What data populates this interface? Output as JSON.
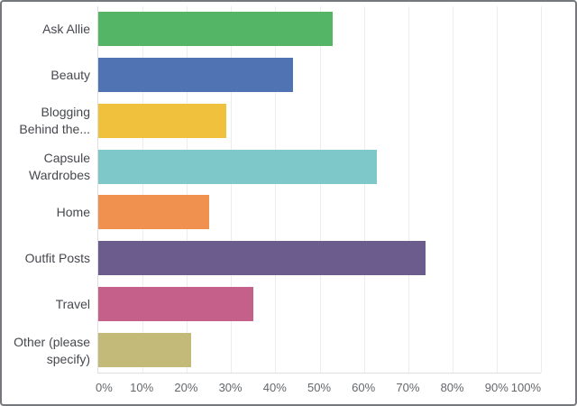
{
  "chart_data": {
    "type": "bar",
    "orientation": "horizontal",
    "title": "",
    "xlabel": "",
    "ylabel": "",
    "categories": [
      "Ask Allie",
      "Beauty",
      "Blogging Behind the...",
      "Capsule Wardrobes",
      "Home",
      "Outfit Posts",
      "Travel",
      "Other (please specify)"
    ],
    "values": [
      53,
      44,
      29,
      63,
      25,
      74,
      35,
      21
    ],
    "unit": "%",
    "xlim": [
      0,
      100
    ],
    "x_ticks": [
      "0%",
      "10%",
      "20%",
      "30%",
      "40%",
      "50%",
      "60%",
      "70%",
      "80%",
      "90%",
      "100%"
    ],
    "grid": true,
    "legend": false,
    "bar_colors": [
      "#55b567",
      "#5074b3",
      "#f0c13d",
      "#7fc8ca",
      "#f0914f",
      "#6c5b8d",
      "#c4608a",
      "#c3ba79"
    ]
  },
  "colors": {
    "background": "#ffffff",
    "frame_border": "#75787c",
    "gridline": "#ededee",
    "axis_line": "#dcdedf",
    "category_label": "#46484d",
    "tick_label": "#64676b"
  }
}
